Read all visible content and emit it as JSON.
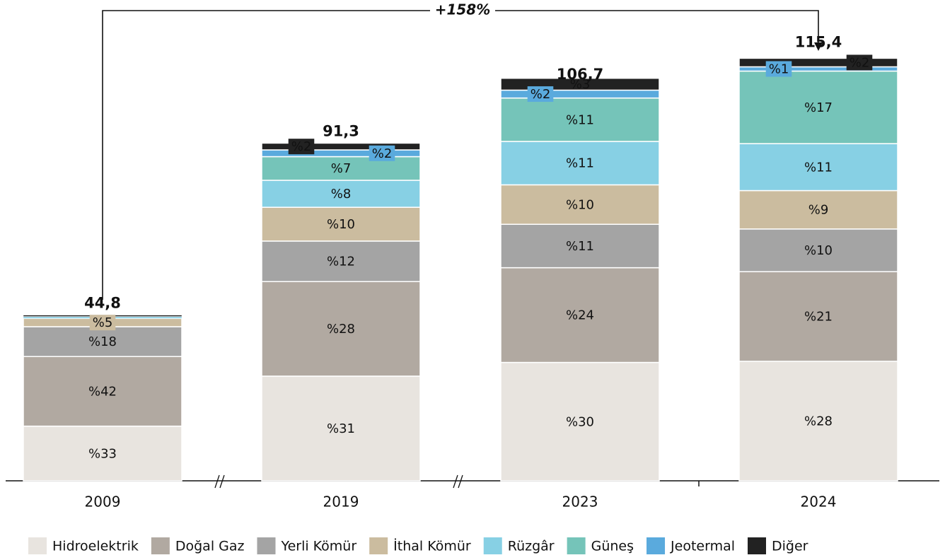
{
  "chart_data": {
    "type": "bar",
    "stacked": true,
    "categories": [
      "2009",
      "2019",
      "2023",
      "2024"
    ],
    "ylim": [
      0,
      130
    ],
    "annotation": "+158%",
    "totals": {
      "values": [
        44.8,
        91.3,
        106.7,
        115.4
      ],
      "value_labels": [
        "44,8",
        "91,3",
        "106,7",
        "115,4"
      ]
    },
    "series": [
      {
        "name": "Hidroelektrik",
        "color": "#e8e4df",
        "values": [
          33,
          31,
          30,
          28
        ],
        "value_labels": [
          "%33",
          "%31",
          "%30",
          "%28"
        ]
      },
      {
        "name": "Doğal Gaz",
        "color": "#b1a9a1",
        "values": [
          42,
          28,
          24,
          21
        ],
        "value_labels": [
          "%42",
          "%28",
          "%24",
          "%21"
        ]
      },
      {
        "name": "Yerli Kömür",
        "color": "#a4a4a4",
        "values": [
          18,
          12,
          11,
          10
        ],
        "value_labels": [
          "%18",
          "%12",
          "%11",
          "%10"
        ]
      },
      {
        "name": "İthal Kömür",
        "color": "#cbbc9f",
        "values": [
          5,
          10,
          10,
          9
        ],
        "value_labels": [
          "%5",
          "%10",
          "%10",
          "%9"
        ]
      },
      {
        "name": "Rüzgâr",
        "color": "#87d0e4",
        "values": [
          1,
          8,
          11,
          11
        ],
        "value_labels": [
          null,
          "%8",
          "%11",
          "%11"
        ]
      },
      {
        "name": "Güneş",
        "color": "#75c4b9",
        "values": [
          0,
          7,
          11,
          17
        ],
        "value_labels": [
          null,
          "%7",
          "%11",
          "%17"
        ]
      },
      {
        "name": "Jeotermal",
        "color": "#5aaadd",
        "values": [
          0.2,
          2,
          2,
          1
        ],
        "value_labels": [
          null,
          "%2",
          "%2",
          "%1"
        ]
      },
      {
        "name": "Diğer",
        "color": "#222222",
        "values": [
          0.8,
          2,
          3,
          2
        ],
        "value_labels": [
          null,
          "%2",
          "%3",
          "%2"
        ]
      }
    ]
  }
}
